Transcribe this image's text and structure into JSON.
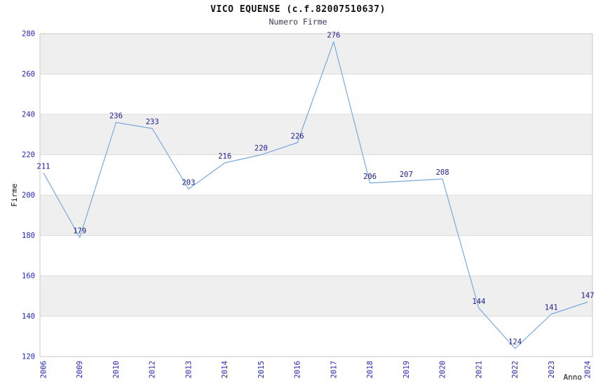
{
  "title": "VICO EQUENSE (c.f.82007510637)",
  "subtitle": "Numero Firme",
  "chart_data": {
    "type": "line",
    "title": "VICO EQUENSE (c.f.82007510637)",
    "subtitle": "Numero Firme",
    "xlabel": "Anno",
    "ylabel": "Firme",
    "categories": [
      "2006",
      "2009",
      "2010",
      "2012",
      "2013",
      "2014",
      "2015",
      "2016",
      "2017",
      "2018",
      "2019",
      "2020",
      "2021",
      "2022",
      "2023",
      "2024"
    ],
    "values": [
      211,
      179,
      236,
      233,
      203,
      216,
      220,
      226,
      276,
      206,
      207,
      208,
      144,
      124,
      141,
      147
    ],
    "ylim": [
      120,
      280
    ],
    "ytick_step": 20,
    "grid": true,
    "legend_position": "none",
    "line_color": "#7aa9dd",
    "label_color": "#1a1a8c",
    "tick_color": "#2828b0",
    "band_color": "#efefef",
    "gridline_color": "#dcdcdc",
    "border_color": "#c8c8c8"
  }
}
